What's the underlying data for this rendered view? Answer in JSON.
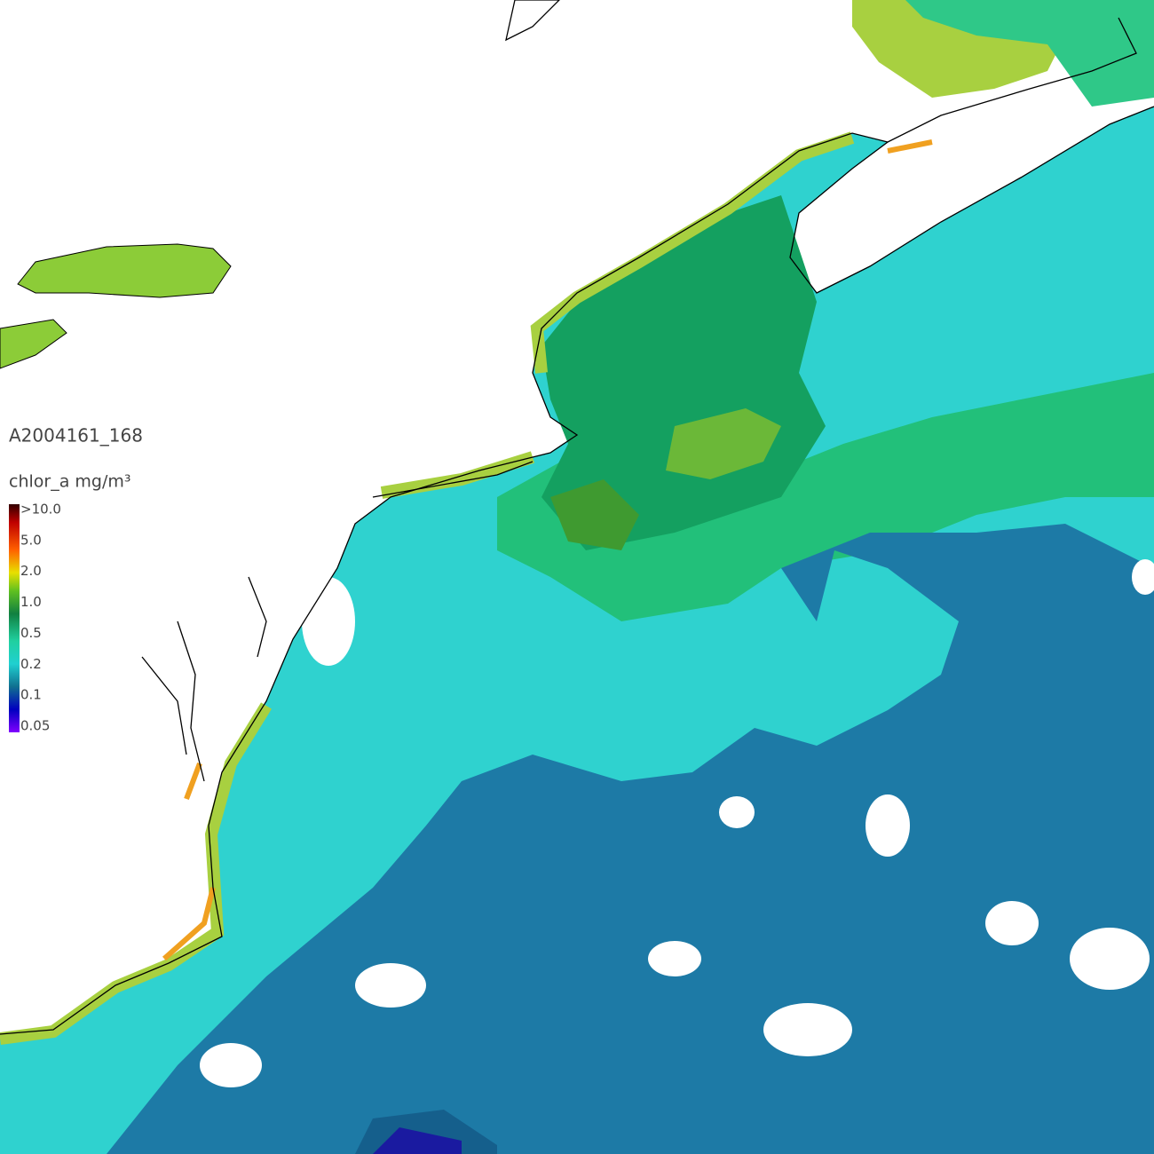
{
  "title": "A2004161_168",
  "colorbar": {
    "label": "chlor_a mg/m³",
    "labels": [
      ">10.0",
      "5.0",
      "2.0",
      "1.0",
      "0.5",
      "0.2",
      "0.1",
      "0.05"
    ]
  }
}
